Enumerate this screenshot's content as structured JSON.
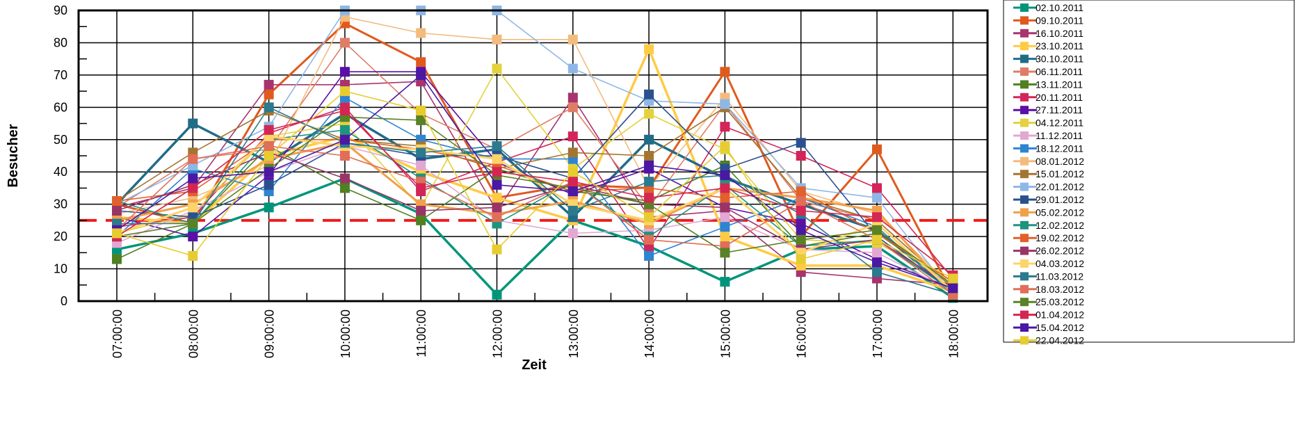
{
  "chart_data": {
    "type": "line",
    "title": "",
    "xlabel": "Zeit",
    "ylabel": "Besucher",
    "ylim": [
      0,
      90
    ],
    "y_ticks": [
      0,
      10,
      20,
      30,
      40,
      50,
      60,
      70,
      80,
      90
    ],
    "grid": true,
    "legend_position": "right",
    "categories": [
      "07:00:00",
      "08:00:00",
      "09:00:00",
      "10:00:00",
      "11:00:00",
      "12:00:00",
      "13:00:00",
      "14:00:00",
      "15:00:00",
      "16:00:00",
      "17:00:00",
      "18:00:00"
    ],
    "reference_line": {
      "value": 25,
      "color": "#ee1c1c",
      "style": "dashed"
    },
    "series": [
      {
        "name": "02.10.2011",
        "color": "#00957a",
        "values": [
          16,
          21,
          29,
          38,
          27,
          2,
          25,
          17,
          6,
          16,
          17,
          1
        ]
      },
      {
        "name": "09.10.2011",
        "color": "#e05a1e",
        "values": [
          30,
          24,
          64,
          86,
          74,
          32,
          36,
          35,
          71,
          20,
          47,
          2
        ]
      },
      {
        "name": "16.10.2011",
        "color": "#a8336e",
        "values": [
          29,
          35,
          67,
          67,
          68,
          28,
          63,
          26,
          28,
          9,
          7,
          5
        ]
      },
      {
        "name": "23.10.2011",
        "color": "#ffcb45",
        "values": [
          26,
          24,
          45,
          51,
          40,
          32,
          25,
          78,
          20,
          11,
          11,
          3
        ]
      },
      {
        "name": "30.10.2011",
        "color": "#206c87",
        "values": [
          30,
          55,
          43,
          58,
          44,
          47,
          26,
          50,
          38,
          30,
          22,
          3
        ]
      },
      {
        "name": "06.11.2011",
        "color": "#e07d67",
        "values": [
          29,
          44,
          47,
          80,
          58,
          47,
          60,
          29,
          61,
          31,
          25,
          4
        ]
      },
      {
        "name": "13.11.2011",
        "color": "#4f8021",
        "values": [
          13,
          24,
          48,
          35,
          25,
          41,
          34,
          31,
          42,
          17,
          21,
          5
        ]
      },
      {
        "name": "20.11.2011",
        "color": "#d42459",
        "values": [
          23,
          26,
          52,
          60,
          34,
          43,
          51,
          16,
          54,
          45,
          35,
          7
        ]
      },
      {
        "name": "27.11.2011",
        "color": "#5b0fa6",
        "values": [
          26,
          20,
          39,
          71,
          71,
          43,
          33,
          41,
          29,
          24,
          13,
          4
        ]
      },
      {
        "name": "04.12.2011",
        "color": "#e3d23e",
        "values": [
          21,
          27,
          51,
          55,
          29,
          72,
          41,
          58,
          47,
          19,
          18,
          6
        ]
      },
      {
        "name": "11.12.2011",
        "color": "#e3a7d3",
        "values": [
          18,
          28,
          40,
          48,
          42,
          25,
          21,
          22,
          26,
          16,
          15,
          3
        ]
      },
      {
        "name": "18.12.2011",
        "color": "#2d84d1",
        "values": [
          20,
          41,
          34,
          63,
          50,
          44,
          44,
          14,
          23,
          32,
          23,
          2
        ]
      },
      {
        "name": "08.01.2012",
        "color": "#f3bb7d",
        "values": [
          27,
          32,
          42,
          88,
          83,
          81,
          81,
          35,
          63,
          34,
          27,
          4
        ]
      },
      {
        "name": "15.01.2012",
        "color": "#a47530",
        "values": [
          31,
          46,
          59,
          50,
          48,
          41,
          46,
          45,
          60,
          32,
          25,
          4
        ]
      },
      {
        "name": "22.01.2012",
        "color": "#8fb7e6",
        "values": [
          30,
          42,
          54,
          90,
          90,
          90,
          72,
          62,
          61,
          35,
          32,
          2
        ]
      },
      {
        "name": "29.01.2012",
        "color": "#2a5090",
        "values": [
          28,
          26,
          36,
          49,
          45,
          45,
          38,
          64,
          41,
          49,
          20,
          3
        ]
      },
      {
        "name": "05.02.2012",
        "color": "#f0a04b",
        "values": [
          25,
          30,
          44,
          49,
          30,
          27,
          31,
          24,
          35,
          32,
          28,
          2
        ]
      },
      {
        "name": "12.02.2012",
        "color": "#1c947f",
        "values": [
          31,
          24,
          50,
          53,
          38,
          24,
          37,
          20,
          36,
          17,
          19,
          3
        ]
      },
      {
        "name": "19.02.2012",
        "color": "#e2602b",
        "values": [
          31,
          34,
          50,
          50,
          47,
          42,
          34,
          35,
          32,
          34,
          21,
          6
        ]
      },
      {
        "name": "26.02.2012",
        "color": "#9a3467",
        "values": [
          28,
          36,
          46,
          38,
          28,
          29,
          36,
          30,
          29,
          16,
          19,
          4
        ]
      },
      {
        "name": "04.03.2012",
        "color": "#fdd46a",
        "values": [
          21,
          29,
          51,
          48,
          47,
          44,
          30,
          25,
          35,
          15,
          24,
          3
        ]
      },
      {
        "name": "11.03.2012",
        "color": "#2b7a8e",
        "values": [
          24,
          24,
          60,
          49,
          46,
          48,
          28,
          37,
          39,
          27,
          9,
          2
        ]
      },
      {
        "name": "18.03.2012",
        "color": "#e06e59",
        "values": [
          22,
          44,
          48,
          45,
          37,
          26,
          37,
          19,
          17,
          31,
          19,
          2
        ]
      },
      {
        "name": "25.03.2012",
        "color": "#5a8126",
        "values": [
          20,
          24,
          41,
          57,
          56,
          39,
          35,
          30,
          15,
          19,
          22,
          5
        ]
      },
      {
        "name": "01.04.2012",
        "color": "#d42652",
        "values": [
          20,
          35,
          53,
          59,
          35,
          40,
          37,
          32,
          35,
          28,
          26,
          8
        ]
      },
      {
        "name": "15.04.2012",
        "color": "#4a18a3",
        "values": [
          22,
          38,
          40,
          50,
          70,
          36,
          34,
          42,
          39,
          22,
          12,
          4
        ]
      },
      {
        "name": "22.04.2012",
        "color": "#e6cc30",
        "values": [
          21,
          14,
          45,
          65,
          59,
          16,
          40,
          26,
          48,
          13,
          19,
          7
        ]
      }
    ]
  }
}
